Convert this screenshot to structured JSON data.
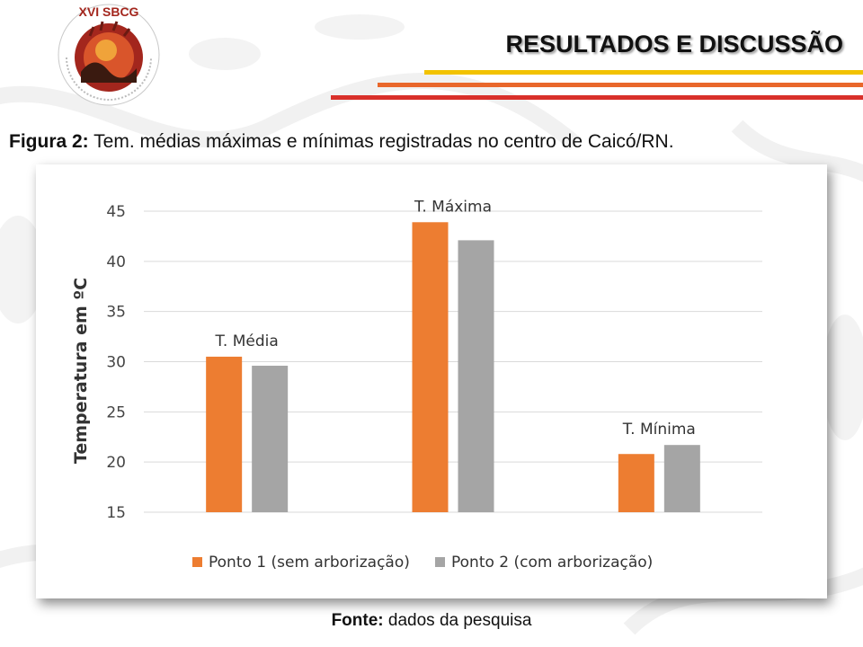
{
  "header": {
    "title": "RESULTADOS E DISCUSSÃO",
    "logo_text": "XVI SBCG"
  },
  "caption": {
    "label": "Figura 2:",
    "text": " Tem. médias máximas e mínimas registradas no centro de Caicó/RN."
  },
  "source": {
    "label": "Fonte:",
    "text": " dados da pesquisa"
  },
  "colors": {
    "series1": "#ED7D31",
    "series2": "#A5A5A5",
    "title_line_yellow": "#F2C200",
    "title_line_orange": "#E9672B",
    "title_line_red": "#D9302A"
  },
  "chart_data": {
    "type": "bar",
    "categories": [
      "T. Média",
      "T. Máxima",
      "T. Mínima"
    ],
    "ylabel": "Temperatura em ºC",
    "ylim": [
      15,
      45
    ],
    "yticks": [
      15,
      20,
      25,
      30,
      35,
      40,
      45
    ],
    "grid": true,
    "legend_position": "bottom-left",
    "series": [
      {
        "name": "Ponto 1 (sem arborização)",
        "values": [
          30.5,
          43.9,
          20.8
        ]
      },
      {
        "name": "Ponto 2 (com arborização)",
        "values": [
          29.6,
          42.1,
          21.7
        ]
      }
    ]
  }
}
